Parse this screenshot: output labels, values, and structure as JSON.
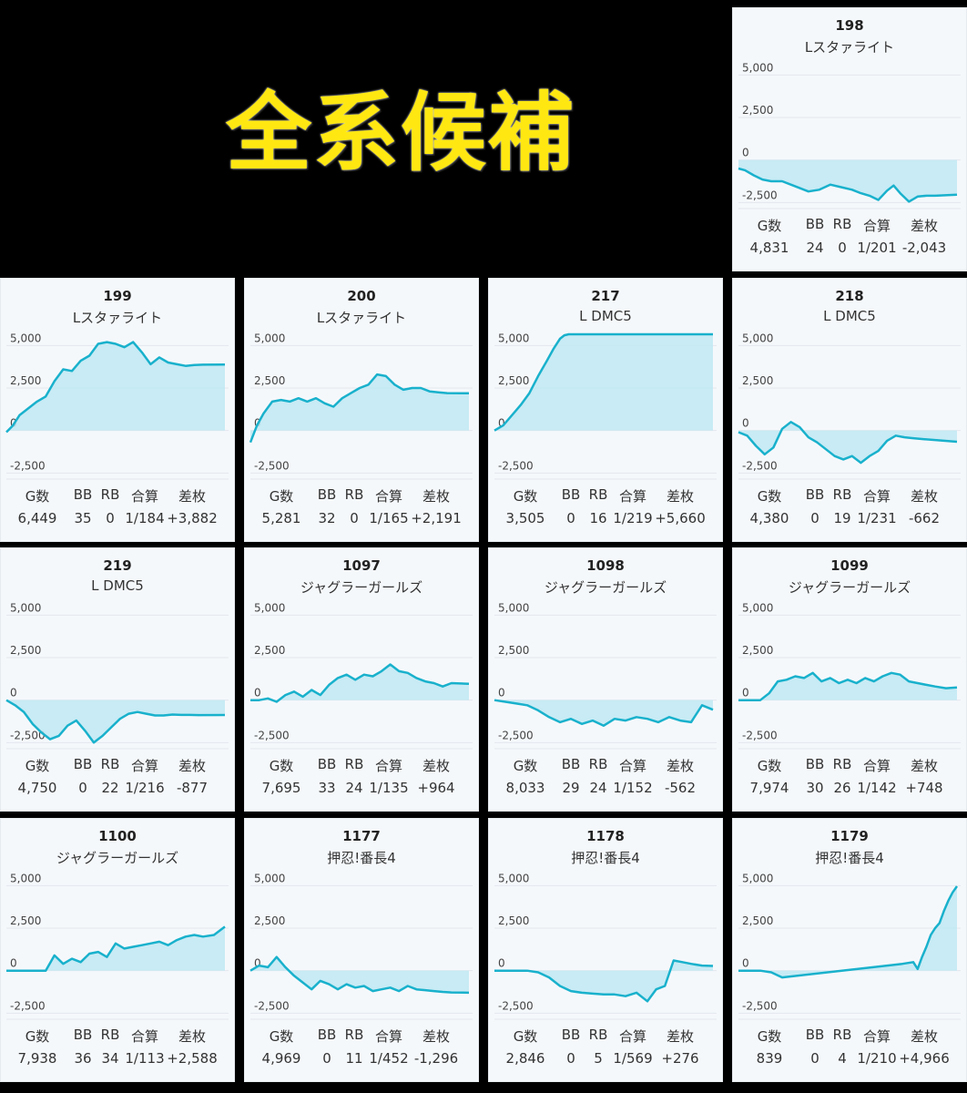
{
  "banner": {
    "title": "全系候補",
    "title_color": "#ffe812"
  },
  "stat_headers": [
    "G数",
    "BB",
    "RB",
    "合算",
    "差枚"
  ],
  "colors": {
    "line": "#19b1cc",
    "fill": "#bfe9f3",
    "grid": "#e3e8ee",
    "card_bg": "#f5f8fb"
  },
  "chart_data": [
    {
      "type": "area",
      "title": "198",
      "subtitle": "Lスタァライト",
      "ylim": [
        -3500,
        5500
      ],
      "y_ticks": [
        "5,000",
        "2,500",
        "0",
        "-2,500"
      ],
      "x": [
        0,
        0.03,
        0.07,
        0.11,
        0.15,
        0.2,
        0.26,
        0.32,
        0.37,
        0.42,
        0.47,
        0.52,
        0.56,
        0.6,
        0.64,
        0.68,
        0.71,
        0.74,
        0.78,
        0.82,
        0.86,
        0.9,
        1.0
      ],
      "y": [
        -500,
        -600,
        -900,
        -1150,
        -1250,
        -1250,
        -1550,
        -1850,
        -1750,
        -1450,
        -1600,
        -1750,
        -1950,
        -2100,
        -2350,
        -1800,
        -1500,
        -1950,
        -2450,
        -2150,
        -2100,
        -2100,
        -2043
      ],
      "stats": {
        "games": "4,831",
        "bb": "24",
        "rb": "0",
        "combined": "1/201",
        "diff": "-2,043"
      }
    },
    {
      "type": "area",
      "title": "199",
      "subtitle": "Lスタァライト",
      "ylim": [
        -3500,
        5500
      ],
      "y_ticks": [
        "5,000",
        "2,500",
        "0",
        "-2,500"
      ],
      "x": [
        0,
        0.03,
        0.06,
        0.1,
        0.14,
        0.18,
        0.22,
        0.26,
        0.3,
        0.34,
        0.38,
        0.42,
        0.46,
        0.5,
        0.54,
        0.58,
        0.62,
        0.66,
        0.7,
        0.74,
        0.78,
        0.82,
        0.86,
        0.9,
        1.0
      ],
      "y": [
        -100,
        300,
        900,
        1300,
        1700,
        2000,
        2900,
        3600,
        3500,
        4100,
        4400,
        5100,
        5200,
        5100,
        4900,
        5200,
        4600,
        3900,
        4300,
        4000,
        3900,
        3800,
        3850,
        3870,
        3882
      ],
      "stats": {
        "games": "6,449",
        "bb": "35",
        "rb": "0",
        "combined": "1/184",
        "diff": "+3,882"
      }
    },
    {
      "type": "area",
      "title": "200",
      "subtitle": "Lスタァライト",
      "ylim": [
        -3500,
        5500
      ],
      "y_ticks": [
        "5,000",
        "2,500",
        "0",
        "-2,500"
      ],
      "x": [
        0,
        0.03,
        0.06,
        0.1,
        0.14,
        0.18,
        0.22,
        0.26,
        0.3,
        0.34,
        0.38,
        0.42,
        0.46,
        0.5,
        0.54,
        0.58,
        0.62,
        0.66,
        0.7,
        0.74,
        0.78,
        0.82,
        0.86,
        0.9,
        1.0
      ],
      "y": [
        -700,
        300,
        1000,
        1700,
        1800,
        1700,
        1900,
        1700,
        1900,
        1600,
        1400,
        1900,
        2200,
        2500,
        2700,
        3300,
        3200,
        2700,
        2400,
        2500,
        2500,
        2300,
        2250,
        2200,
        2191
      ],
      "stats": {
        "games": "5,281",
        "bb": "32",
        "rb": "0",
        "combined": "1/165",
        "diff": "+2,191"
      }
    },
    {
      "type": "area",
      "title": "217",
      "subtitle": "L DMC5",
      "ylim": [
        -3500,
        5500
      ],
      "y_ticks": [
        "5,000",
        "2,500",
        "0",
        "-2,500"
      ],
      "x": [
        0,
        0.04,
        0.08,
        0.12,
        0.16,
        0.2,
        0.24,
        0.27,
        0.3,
        0.32,
        0.34,
        1.0
      ],
      "y": [
        0,
        300,
        900,
        1500,
        2200,
        3200,
        4100,
        4800,
        5400,
        5600,
        5660,
        5660
      ],
      "stats": {
        "games": "3,505",
        "bb": "0",
        "rb": "16",
        "combined": "1/219",
        "diff": "+5,660"
      }
    },
    {
      "type": "area",
      "title": "218",
      "subtitle": "L DMC5",
      "ylim": [
        -3500,
        5500
      ],
      "y_ticks": [
        "5,000",
        "2,500",
        "0",
        "-2,500"
      ],
      "x": [
        0,
        0.04,
        0.08,
        0.12,
        0.16,
        0.2,
        0.24,
        0.28,
        0.32,
        0.36,
        0.4,
        0.44,
        0.48,
        0.52,
        0.56,
        0.6,
        0.64,
        0.68,
        0.72,
        0.76,
        0.8,
        0.84,
        1.0
      ],
      "y": [
        -100,
        -300,
        -900,
        -1400,
        -1000,
        100,
        500,
        200,
        -400,
        -700,
        -1100,
        -1500,
        -1700,
        -1500,
        -1900,
        -1500,
        -1200,
        -600,
        -300,
        -400,
        -450,
        -500,
        -662
      ],
      "stats": {
        "games": "4,380",
        "bb": "0",
        "rb": "19",
        "combined": "1/231",
        "diff": "-662"
      }
    },
    {
      "type": "area",
      "title": "219",
      "subtitle": "L DMC5",
      "ylim": [
        -3500,
        5500
      ],
      "y_ticks": [
        "5,000",
        "2,500",
        "0",
        "-2,500"
      ],
      "x": [
        0,
        0.04,
        0.08,
        0.12,
        0.16,
        0.2,
        0.24,
        0.28,
        0.32,
        0.36,
        0.4,
        0.44,
        0.48,
        0.52,
        0.56,
        0.6,
        0.64,
        0.68,
        0.72,
        0.76,
        0.8,
        0.84,
        0.88,
        1.0
      ],
      "y": [
        0,
        -300,
        -700,
        -1400,
        -1900,
        -2300,
        -2100,
        -1500,
        -1200,
        -1800,
        -2500,
        -2100,
        -1600,
        -1100,
        -800,
        -700,
        -800,
        -900,
        -900,
        -850,
        -870,
        -870,
        -880,
        -877
      ],
      "stats": {
        "games": "4,750",
        "bb": "0",
        "rb": "22",
        "combined": "1/216",
        "diff": "-877"
      }
    },
    {
      "type": "area",
      "title": "1097",
      "subtitle": "ジャグラーガールズ",
      "ylim": [
        -3500,
        5500
      ],
      "y_ticks": [
        "5,000",
        "2,500",
        "0",
        "-2,500"
      ],
      "x": [
        0,
        0.04,
        0.08,
        0.12,
        0.16,
        0.2,
        0.24,
        0.28,
        0.32,
        0.36,
        0.4,
        0.44,
        0.48,
        0.52,
        0.56,
        0.6,
        0.64,
        0.68,
        0.72,
        0.76,
        0.8,
        0.84,
        0.88,
        0.92,
        1.0
      ],
      "y": [
        0,
        0,
        100,
        -100,
        300,
        500,
        200,
        600,
        300,
        900,
        1300,
        1500,
        1200,
        1500,
        1400,
        1700,
        2100,
        1700,
        1600,
        1300,
        1100,
        1000,
        800,
        1000,
        964
      ],
      "stats": {
        "games": "7,695",
        "bb": "33",
        "rb": "24",
        "combined": "1/135",
        "diff": "+964"
      }
    },
    {
      "type": "area",
      "title": "1098",
      "subtitle": "ジャグラーガールズ",
      "ylim": [
        -3500,
        5500
      ],
      "y_ticks": [
        "5,000",
        "2,500",
        "0",
        "-2,500"
      ],
      "x": [
        0,
        0.05,
        0.1,
        0.15,
        0.2,
        0.25,
        0.3,
        0.35,
        0.4,
        0.45,
        0.5,
        0.55,
        0.6,
        0.65,
        0.7,
        0.75,
        0.8,
        0.85,
        0.9,
        0.95,
        1.0
      ],
      "y": [
        0,
        -100,
        -200,
        -300,
        -600,
        -1000,
        -1300,
        -1100,
        -1400,
        -1200,
        -1500,
        -1100,
        -1200,
        -1000,
        -1100,
        -1300,
        -1000,
        -1200,
        -1300,
        -300,
        -562
      ],
      "stats": {
        "games": "8,033",
        "bb": "29",
        "rb": "24",
        "combined": "1/152",
        "diff": "-562"
      }
    },
    {
      "type": "area",
      "title": "1099",
      "subtitle": "ジャグラーガールズ",
      "ylim": [
        -3500,
        5500
      ],
      "y_ticks": [
        "5,000",
        "2,500",
        "0",
        "-2,500"
      ],
      "x": [
        0,
        0.05,
        0.1,
        0.14,
        0.18,
        0.22,
        0.26,
        0.3,
        0.34,
        0.38,
        0.42,
        0.46,
        0.5,
        0.54,
        0.58,
        0.62,
        0.66,
        0.7,
        0.74,
        0.78,
        0.82,
        0.86,
        0.9,
        0.95,
        1.0
      ],
      "y": [
        0,
        0,
        0,
        400,
        1100,
        1200,
        1400,
        1300,
        1600,
        1100,
        1300,
        1000,
        1200,
        1000,
        1300,
        1100,
        1400,
        1600,
        1500,
        1100,
        1000,
        900,
        800,
        700,
        748
      ],
      "stats": {
        "games": "7,974",
        "bb": "30",
        "rb": "26",
        "combined": "1/142",
        "diff": "+748"
      }
    },
    {
      "type": "area",
      "title": "1100",
      "subtitle": "ジャグラーガールズ",
      "ylim": [
        -3500,
        5500
      ],
      "y_ticks": [
        "5,000",
        "2,500",
        "0",
        "-2,500"
      ],
      "x": [
        0,
        0.05,
        0.1,
        0.14,
        0.18,
        0.22,
        0.26,
        0.3,
        0.34,
        0.38,
        0.42,
        0.46,
        0.5,
        0.54,
        0.58,
        0.62,
        0.66,
        0.7,
        0.74,
        0.78,
        0.82,
        0.86,
        0.9,
        0.95,
        1.0
      ],
      "y": [
        0,
        0,
        0,
        0,
        0,
        900,
        400,
        700,
        500,
        1000,
        1100,
        800,
        1600,
        1300,
        1400,
        1500,
        1600,
        1700,
        1500,
        1800,
        2000,
        2100,
        2000,
        2100,
        2588
      ],
      "stats": {
        "games": "7,938",
        "bb": "36",
        "rb": "34",
        "combined": "1/113",
        "diff": "+2,588"
      }
    },
    {
      "type": "area",
      "title": "1177",
      "subtitle": "押忍!番長4",
      "ylim": [
        -3500,
        5500
      ],
      "y_ticks": [
        "5,000",
        "2,500",
        "0",
        "-2,500"
      ],
      "x": [
        0,
        0.04,
        0.08,
        0.12,
        0.16,
        0.2,
        0.24,
        0.28,
        0.32,
        0.36,
        0.4,
        0.44,
        0.48,
        0.52,
        0.56,
        0.6,
        0.64,
        0.68,
        0.72,
        0.76,
        0.8,
        0.84,
        0.88,
        0.92,
        1.0
      ],
      "y": [
        0,
        300,
        200,
        800,
        200,
        -300,
        -700,
        -1100,
        -600,
        -800,
        -1100,
        -800,
        -1000,
        -900,
        -1200,
        -1100,
        -1000,
        -1200,
        -900,
        -1100,
        -1150,
        -1200,
        -1250,
        -1280,
        -1296
      ],
      "stats": {
        "games": "4,969",
        "bb": "0",
        "rb": "11",
        "combined": "1/452",
        "diff": "-1,296"
      }
    },
    {
      "type": "area",
      "title": "1178",
      "subtitle": "押忍!番長4",
      "ylim": [
        -3500,
        5500
      ],
      "y_ticks": [
        "5,000",
        "2,500",
        "0",
        "-2,500"
      ],
      "x": [
        0,
        0.05,
        0.1,
        0.15,
        0.2,
        0.25,
        0.3,
        0.35,
        0.4,
        0.45,
        0.5,
        0.55,
        0.6,
        0.65,
        0.7,
        0.74,
        0.78,
        0.82,
        0.86,
        0.9,
        0.95,
        1.0
      ],
      "y": [
        0,
        0,
        0,
        0,
        -100,
        -400,
        -900,
        -1200,
        -1300,
        -1350,
        -1400,
        -1400,
        -1500,
        -1300,
        -1800,
        -1100,
        -900,
        600,
        500,
        400,
        300,
        276
      ],
      "stats": {
        "games": "2,846",
        "bb": "0",
        "rb": "5",
        "combined": "1/569",
        "diff": "+276"
      }
    },
    {
      "type": "area",
      "title": "1179",
      "subtitle": "押忍!番長4",
      "ylim": [
        -3500,
        5500
      ],
      "y_ticks": [
        "5,000",
        "2,500",
        "0",
        "-2,500"
      ],
      "x": [
        0,
        0.05,
        0.1,
        0.15,
        0.2,
        0.75,
        0.8,
        0.82,
        0.84,
        0.86,
        0.88,
        0.9,
        0.92,
        0.94,
        0.96,
        0.98,
        1.0
      ],
      "y": [
        0,
        0,
        0,
        -100,
        -400,
        400,
        500,
        100,
        800,
        1400,
        2100,
        2500,
        2800,
        3500,
        4100,
        4600,
        4966
      ],
      "stats": {
        "games": "839",
        "bb": "0",
        "rb": "4",
        "combined": "1/210",
        "diff": "+4,966"
      }
    }
  ]
}
